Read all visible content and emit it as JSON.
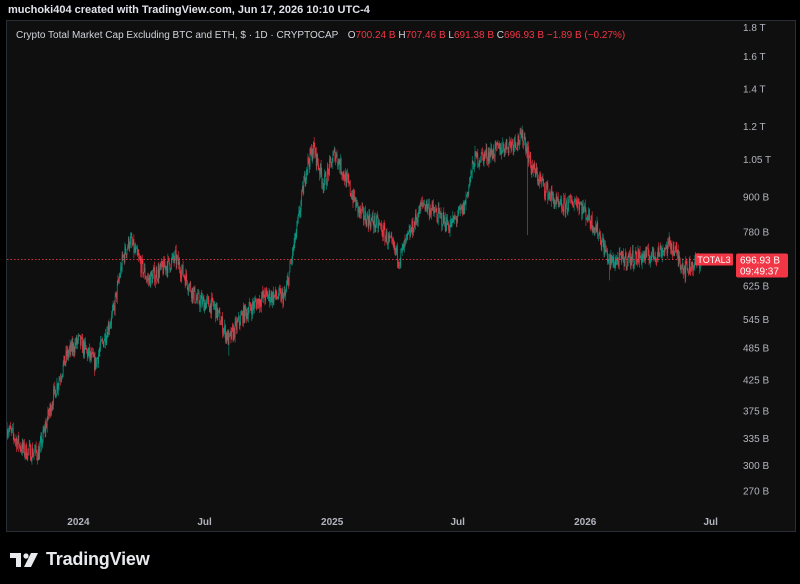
{
  "header": {
    "created_text": "muchoki404 created with TradingView.com, Jun 17, 2026 10:10 UTC-4"
  },
  "legend": {
    "title": "Crypto Total Market Cap Excluding BTC and ETH, $ · 1D · CRYPTOCAP",
    "o_label": "O",
    "o_value": "700.24 B",
    "h_label": "H",
    "h_value": "707.46 B",
    "l_label": "L",
    "l_value": "691.38 B",
    "c_label": "C",
    "c_value": "696.93 B",
    "change": "−1.89 B (−0.27%)"
  },
  "chart_data": {
    "type": "candlestick",
    "symbol": "TOTAL3",
    "y_scale": "log",
    "ylim": [
      255,
      1850
    ],
    "xlim": [
      "2023-09-20",
      "2026-08-05"
    ],
    "y_ticks": [
      {
        "value": 1800,
        "label": "1.8 T"
      },
      {
        "value": 1600,
        "label": "1.6 T"
      },
      {
        "value": 1400,
        "label": "1.4 T"
      },
      {
        "value": 1200,
        "label": "1.2 T"
      },
      {
        "value": 1050,
        "label": "1.05 T"
      },
      {
        "value": 900,
        "label": "900 B"
      },
      {
        "value": 780,
        "label": "780 B"
      },
      {
        "value": 625,
        "label": "625 B"
      },
      {
        "value": 545,
        "label": "545 B"
      },
      {
        "value": 485,
        "label": "485 B"
      },
      {
        "value": 425,
        "label": "425 B"
      },
      {
        "value": 375,
        "label": "375 B"
      },
      {
        "value": 335,
        "label": "335 B"
      },
      {
        "value": 300,
        "label": "300 B"
      },
      {
        "value": 270,
        "label": "270 B"
      }
    ],
    "x_ticks": [
      {
        "date": "2024-01-01",
        "label": "2024"
      },
      {
        "date": "2024-07-01",
        "label": "Jul"
      },
      {
        "date": "2025-01-01",
        "label": "2025"
      },
      {
        "date": "2025-07-01",
        "label": "Jul"
      },
      {
        "date": "2026-01-01",
        "label": "2026"
      },
      {
        "date": "2026-07-01",
        "label": "Jul"
      }
    ],
    "path": [
      {
        "date": "2023-09-20",
        "value": 350
      },
      {
        "date": "2023-10-15",
        "value": 318
      },
      {
        "date": "2023-11-05",
        "value": 316
      },
      {
        "date": "2023-11-25",
        "value": 395
      },
      {
        "date": "2023-12-15",
        "value": 470
      },
      {
        "date": "2024-01-01",
        "value": 500
      },
      {
        "date": "2024-01-25",
        "value": 455
      },
      {
        "date": "2024-02-20",
        "value": 560
      },
      {
        "date": "2024-03-05",
        "value": 700
      },
      {
        "date": "2024-03-15",
        "value": 755
      },
      {
        "date": "2024-04-10",
        "value": 640
      },
      {
        "date": "2024-05-20",
        "value": 700
      },
      {
        "date": "2024-06-20",
        "value": 590
      },
      {
        "date": "2024-07-15",
        "value": 575
      },
      {
        "date": "2024-08-05",
        "value": 500
      },
      {
        "date": "2024-08-25",
        "value": 555
      },
      {
        "date": "2024-09-25",
        "value": 600
      },
      {
        "date": "2024-10-25",
        "value": 598
      },
      {
        "date": "2024-11-12",
        "value": 800
      },
      {
        "date": "2024-11-25",
        "value": 1020
      },
      {
        "date": "2024-12-05",
        "value": 1100
      },
      {
        "date": "2024-12-20",
        "value": 950
      },
      {
        "date": "2025-01-05",
        "value": 1080
      },
      {
        "date": "2025-01-25",
        "value": 940
      },
      {
        "date": "2025-02-10",
        "value": 840
      },
      {
        "date": "2025-03-10",
        "value": 800
      },
      {
        "date": "2025-04-08",
        "value": 700
      },
      {
        "date": "2025-05-12",
        "value": 880
      },
      {
        "date": "2025-06-20",
        "value": 800
      },
      {
        "date": "2025-07-10",
        "value": 860
      },
      {
        "date": "2025-07-25",
        "value": 1050
      },
      {
        "date": "2025-08-20",
        "value": 1080
      },
      {
        "date": "2025-09-15",
        "value": 1120
      },
      {
        "date": "2025-10-05",
        "value": 1150
      },
      {
        "date": "2025-10-15",
        "value": 1020
      },
      {
        "date": "2025-11-05",
        "value": 930
      },
      {
        "date": "2025-11-25",
        "value": 860
      },
      {
        "date": "2025-12-20",
        "value": 890
      },
      {
        "date": "2026-01-20",
        "value": 780
      },
      {
        "date": "2026-02-05",
        "value": 690
      },
      {
        "date": "2026-03-05",
        "value": 700
      },
      {
        "date": "2026-04-10",
        "value": 710
      },
      {
        "date": "2026-05-05",
        "value": 740
      },
      {
        "date": "2026-05-25",
        "value": 670
      },
      {
        "date": "2026-06-17",
        "value": 697
      }
    ],
    "wicks": [
      {
        "date": "2024-08-05",
        "low": 470
      },
      {
        "date": "2025-10-10",
        "low": 770
      },
      {
        "date": "2026-02-05",
        "low": 640
      }
    ],
    "last": {
      "value": 696.93,
      "price_label": "696.93 B",
      "countdown": "09:49:37",
      "symbol_label": "TOTAL3"
    },
    "colors": {
      "up": "#089981",
      "down": "#f23645",
      "background": "#0f0f0f",
      "axis_text": "#b2b5be",
      "last_line": "#f23645"
    }
  },
  "footer": {
    "brand": "TradingView"
  }
}
